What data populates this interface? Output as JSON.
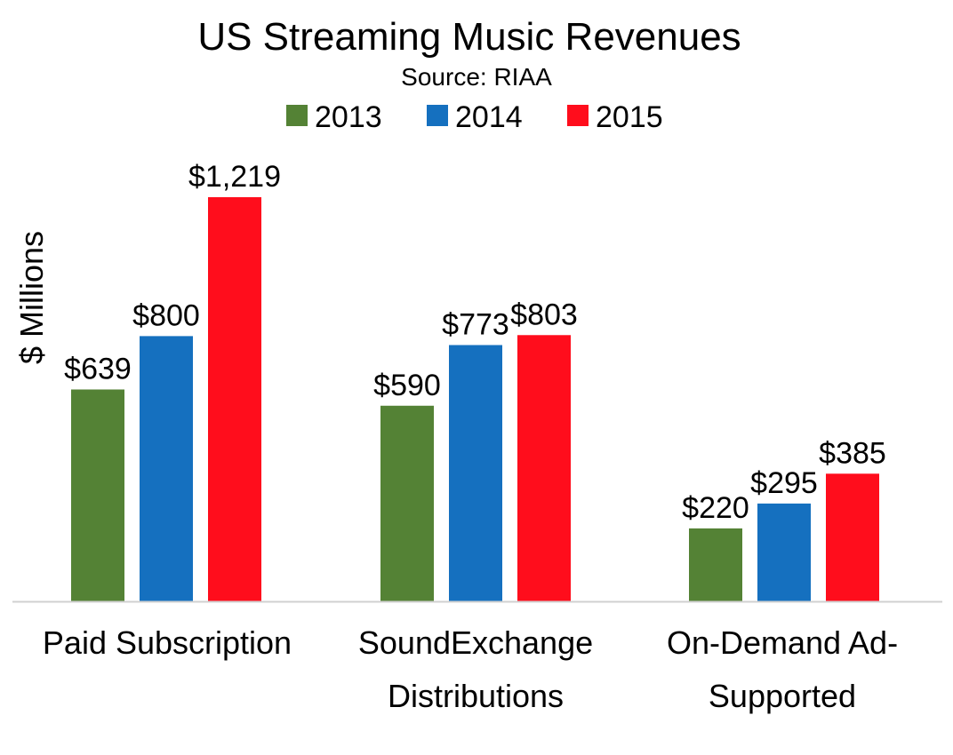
{
  "chart_data": {
    "type": "bar",
    "title": "US Streaming Music Revenues",
    "subtitle": "Source: RIAA",
    "ylabel": "$ Millions",
    "xlabel": "",
    "ylim": [
      0,
      1219
    ],
    "grid": false,
    "legend": "top",
    "categories": [
      [
        "Paid Subscription"
      ],
      [
        "SoundExchange",
        "Distributions"
      ],
      [
        "On-Demand Ad-",
        "Supported"
      ]
    ],
    "series": [
      {
        "name": "2013",
        "color": "#548235",
        "values": [
          639,
          590,
          220
        ],
        "labels": [
          "$639",
          "$590",
          "$220"
        ]
      },
      {
        "name": "2014",
        "color": "#1570BF",
        "values": [
          800,
          773,
          295
        ],
        "labels": [
          "$800",
          "$773",
          "$295"
        ]
      },
      {
        "name": "2015",
        "color": "#FF0D1C",
        "values": [
          1219,
          803,
          385
        ],
        "labels": [
          "$1,219",
          "$803",
          "$385"
        ]
      }
    ]
  }
}
